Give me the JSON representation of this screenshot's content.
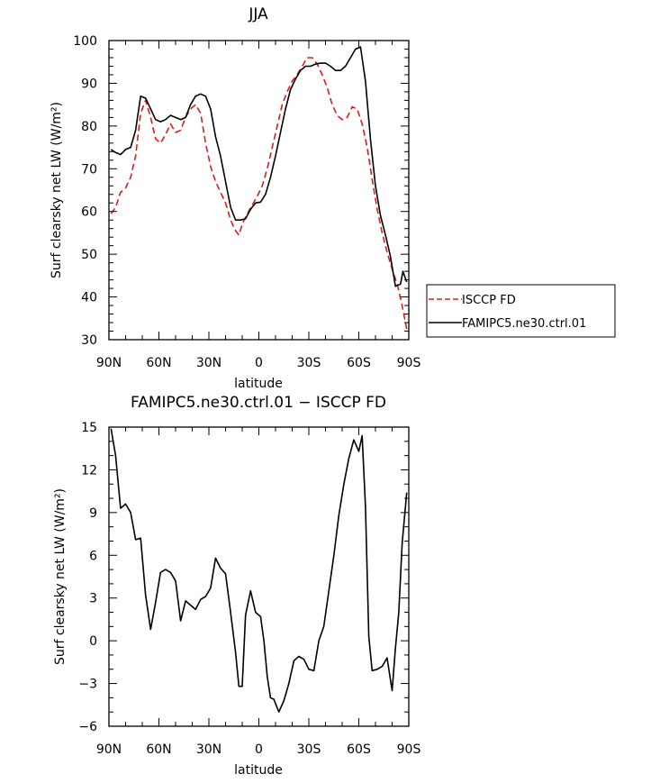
{
  "chart_data": [
    {
      "type": "line",
      "title": "JJA",
      "xlabel": "latitude",
      "ylabel": "Surf clearsky net LW (W/m²)",
      "xlim": [
        90,
        -90
      ],
      "ylim": [
        30,
        100
      ],
      "x_ticks": [
        90,
        60,
        30,
        0,
        -30,
        -60,
        -90
      ],
      "x_tick_labels": [
        "90N",
        "60N",
        "30N",
        "0",
        "30S",
        "60S",
        "90S"
      ],
      "y_ticks": [
        30,
        40,
        50,
        60,
        70,
        80,
        90,
        100
      ],
      "y_tick_labels": [
        "30",
        "40",
        "50",
        "60",
        "70",
        "80",
        "90",
        "100"
      ],
      "legend_position": "right, outside plot",
      "grid": false,
      "series": [
        {
          "name": "ISCCP FD",
          "color": "#e31a1c",
          "dash": "dashed",
          "points": [
            [
              88.75,
              59.5
            ],
            [
              86,
              61
            ],
            [
              83,
              64.5
            ],
            [
              80,
              65.5
            ],
            [
              77,
              68
            ],
            [
              74,
              73
            ],
            [
              71,
              83
            ],
            [
              68,
              86
            ],
            [
              65,
              82
            ],
            [
              62,
              77
            ],
            [
              59,
              76
            ],
            [
              56,
              78
            ],
            [
              53,
              80.5
            ],
            [
              50,
              78.5
            ],
            [
              47,
              79
            ],
            [
              44,
              82
            ],
            [
              41,
              84
            ],
            [
              38,
              85
            ],
            [
              35,
              83
            ],
            [
              32,
              76
            ],
            [
              29,
              70.5
            ],
            [
              26,
              67
            ],
            [
              23,
              64.5
            ],
            [
              20,
              62
            ],
            [
              17,
              58
            ],
            [
              14,
              55.5
            ],
            [
              12,
              54.5
            ],
            [
              10,
              57
            ],
            [
              7,
              59.5
            ],
            [
              4,
              61.5
            ],
            [
              1,
              63.5
            ],
            [
              -2,
              66
            ],
            [
              -5,
              70
            ],
            [
              -8,
              75
            ],
            [
              -11,
              80
            ],
            [
              -14,
              85
            ],
            [
              -17,
              88
            ],
            [
              -20,
              90.5
            ],
            [
              -23,
              92
            ],
            [
              -26,
              94
            ],
            [
              -29,
              96
            ],
            [
              -32,
              96
            ],
            [
              -35,
              94.5
            ],
            [
              -38,
              92
            ],
            [
              -41,
              89
            ],
            [
              -44,
              85
            ],
            [
              -47,
              82.5
            ],
            [
              -50,
              81.5
            ],
            [
              -53,
              82
            ],
            [
              -56,
              84.5
            ],
            [
              -59,
              84
            ],
            [
              -62,
              80.5
            ],
            [
              -65,
              75
            ],
            [
              -68,
              67.5
            ],
            [
              -71,
              60.5
            ],
            [
              -74,
              55
            ],
            [
              -77,
              50.5
            ],
            [
              -80,
              46.5
            ],
            [
              -83,
              43
            ],
            [
              -86,
              38
            ],
            [
              -88.75,
              32.5
            ]
          ]
        },
        {
          "name": "FAMIPC5.ne30.ctrl.01",
          "color": "#000000",
          "dash": "solid",
          "points": [
            [
              88.75,
              74.5
            ],
            [
              86,
              73.8
            ],
            [
              83,
              73.3
            ],
            [
              80,
              74.5
            ],
            [
              77,
              75
            ],
            [
              74,
              79
            ],
            [
              71,
              87
            ],
            [
              68,
              86.5
            ],
            [
              65,
              84
            ],
            [
              62,
              81.5
            ],
            [
              59,
              81
            ],
            [
              56,
              81.5
            ],
            [
              53,
              82.5
            ],
            [
              50,
              82
            ],
            [
              47,
              81.5
            ],
            [
              44,
              82
            ],
            [
              41,
              85
            ],
            [
              38,
              87
            ],
            [
              35,
              87.5
            ],
            [
              32,
              87
            ],
            [
              29,
              84
            ],
            [
              26,
              77.5
            ],
            [
              23,
              73
            ],
            [
              20,
              67
            ],
            [
              17,
              61
            ],
            [
              14,
              58
            ],
            [
              11,
              58
            ],
            [
              8,
              58.3
            ],
            [
              5,
              60.5
            ],
            [
              2,
              62
            ],
            [
              -1,
              62.2
            ],
            [
              -4,
              64
            ],
            [
              -7,
              68
            ],
            [
              -10,
              73
            ],
            [
              -13,
              78.5
            ],
            [
              -16,
              84
            ],
            [
              -19,
              88.5
            ],
            [
              -22,
              91
            ],
            [
              -25,
              93
            ],
            [
              -28,
              94
            ],
            [
              -31,
              94
            ],
            [
              -34,
              94.5
            ],
            [
              -37,
              94.7
            ],
            [
              -40,
              94.7
            ],
            [
              -43,
              94
            ],
            [
              -46,
              93
            ],
            [
              -49,
              93
            ],
            [
              -52,
              94
            ],
            [
              -55,
              96
            ],
            [
              -58,
              98
            ],
            [
              -61,
              98.5
            ],
            [
              -64,
              90.5
            ],
            [
              -67,
              77
            ],
            [
              -70,
              66
            ],
            [
              -73,
              59
            ],
            [
              -76,
              54.5
            ],
            [
              -79,
              49.5
            ],
            [
              -82,
              42.5
            ],
            [
              -85,
              43
            ],
            [
              -86.5,
              46
            ],
            [
              -88.75,
              43.5
            ]
          ]
        }
      ]
    },
    {
      "type": "line",
      "title": "FAMIPC5.ne30.ctrl.01 − ISCCP FD",
      "xlabel": "latitude",
      "ylabel": "Surf clearsky net LW (W/m²)",
      "xlim": [
        90,
        -90
      ],
      "ylim": [
        -6,
        15
      ],
      "x_ticks": [
        90,
        60,
        30,
        0,
        -30,
        -60,
        -90
      ],
      "x_tick_labels": [
        "90N",
        "60N",
        "30N",
        "0",
        "30S",
        "60S",
        "90S"
      ],
      "y_ticks": [
        -6,
        -3,
        0,
        3,
        6,
        9,
        12,
        15
      ],
      "y_tick_labels": [
        "−6",
        "−3",
        "0",
        "3",
        "6",
        "9",
        "12",
        "15"
      ],
      "grid": false,
      "series": [
        {
          "color": "#000000",
          "dash": "solid",
          "points": [
            [
              88.75,
              14.9
            ],
            [
              86,
              13
            ],
            [
              83,
              9.3
            ],
            [
              80,
              9.6
            ],
            [
              77,
              9
            ],
            [
              74,
              7.1
            ],
            [
              71,
              7.2
            ],
            [
              68,
              3.2
            ],
            [
              65,
              0.8
            ],
            [
              62,
              2.7
            ],
            [
              59,
              4.8
            ],
            [
              56,
              5
            ],
            [
              53,
              4.8
            ],
            [
              50,
              4.2
            ],
            [
              47,
              1.4
            ],
            [
              44,
              2.8
            ],
            [
              41,
              2.5
            ],
            [
              38,
              2.2
            ],
            [
              35,
              2.9
            ],
            [
              32,
              3.1
            ],
            [
              29,
              3.7
            ],
            [
              26,
              5.8
            ],
            [
              23,
              5.1
            ],
            [
              20,
              4.7
            ],
            [
              17,
              2
            ],
            [
              14,
              -0.8
            ],
            [
              12,
              -3.2
            ],
            [
              10,
              -3.2
            ],
            [
              8,
              1.8
            ],
            [
              5,
              3.5
            ],
            [
              2,
              2
            ],
            [
              -1,
              1.7
            ],
            [
              -3,
              0
            ],
            [
              -5,
              -2.5
            ],
            [
              -7,
              -4
            ],
            [
              -9,
              -4.1
            ],
            [
              -12,
              -5
            ],
            [
              -15,
              -4.2
            ],
            [
              -18,
              -3
            ],
            [
              -21,
              -1.4
            ],
            [
              -24,
              -1.1
            ],
            [
              -27,
              -1.3
            ],
            [
              -30,
              -2
            ],
            [
              -33,
              -2.1
            ],
            [
              -36,
              0
            ],
            [
              -39,
              1
            ],
            [
              -42,
              3.5
            ],
            [
              -45,
              6
            ],
            [
              -48,
              8.8
            ],
            [
              -51,
              11
            ],
            [
              -54,
              12.8
            ],
            [
              -57,
              14.1
            ],
            [
              -60,
              13.3
            ],
            [
              -62,
              14.4
            ],
            [
              -64,
              9.4
            ],
            [
              -66,
              0.3
            ],
            [
              -68,
              -2.1
            ],
            [
              -71,
              -2
            ],
            [
              -74,
              -1.8
            ],
            [
              -77,
              -1.2
            ],
            [
              -80,
              -3.5
            ],
            [
              -82,
              -0.5
            ],
            [
              -84,
              2
            ],
            [
              -86,
              6.8
            ],
            [
              -88.75,
              10.4
            ]
          ]
        }
      ]
    }
  ]
}
